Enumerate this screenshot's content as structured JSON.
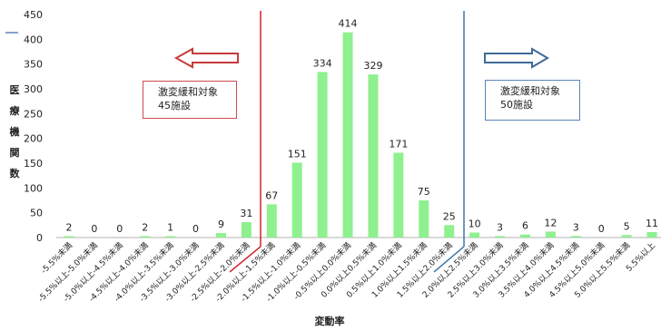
{
  "chart_data": {
    "type": "bar",
    "title": "",
    "xlabel": "変動率",
    "ylabel": "医療機関数",
    "ylim": [
      0,
      450
    ],
    "yticks": [
      0,
      50,
      100,
      150,
      200,
      250,
      300,
      350,
      400,
      450
    ],
    "grid": false,
    "bar_color": "#8ef08e",
    "categories": [
      "-5.5%未満",
      "-5.5%以上-5.0%未満",
      "-5.0%以上-4.5%未満",
      "-4.5%以上-4.0%未満",
      "-4.0%以上-3.5%未満",
      "-3.5%以上-3.0%未満",
      "-3.0%以上-2.5%未満",
      "-2.5%以上-2.0%未満",
      "-2.0%以上-1.5%未満",
      "-1.5%以上-1.0%未満",
      "-1.0%以上-0.5%未満",
      "-0.5%以上0.0%未満",
      "0.0%以上0.5%未満",
      "0.5%以上1.0%未満",
      "1.0%以上1.5%未満",
      "1.5%以上2.0%未満",
      "2.0%以上2.5%未満",
      "2.5%以上3.0%未満",
      "3.0%以上3.5%未満",
      "3.5%以上4.0%未満",
      "4.0%以上4.5%未満",
      "4.5%以上5.0%未満",
      "5.0%以上5.5%未満",
      "5.5%以上"
    ],
    "values": [
      2,
      0,
      0,
      2,
      1,
      0,
      9,
      31,
      67,
      151,
      334,
      414,
      329,
      171,
      75,
      25,
      10,
      3,
      6,
      12,
      3,
      0,
      5,
      11
    ],
    "annotations": {
      "left_box": {
        "line1": "激変緩和対象",
        "line2": "45施設",
        "color": "#d04a52"
      },
      "right_box": {
        "line1": "激変緩和対象",
        "line2": "50施設",
        "color": "#5a86b8"
      }
    }
  }
}
